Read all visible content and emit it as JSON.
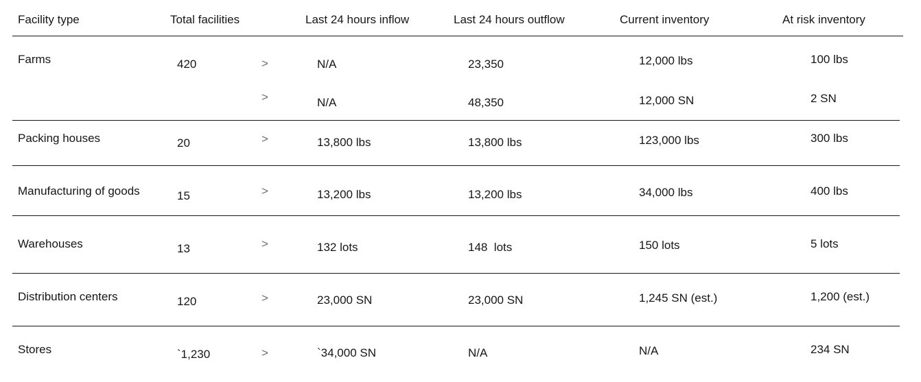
{
  "columns": [
    "Facility type",
    "Total facilities",
    "Last 24 hours inflow",
    "Last 24 hours outflow",
    "Current inventory",
    "At risk inventory"
  ],
  "chevron_glyph": ">",
  "rows": [
    {
      "type": "Farms",
      "total": "420",
      "inflow": "N/A",
      "outflow": "23,350",
      "inventory": "12,000 lbs",
      "risk": "100 lbs"
    },
    {
      "type": "",
      "total": "",
      "inflow": "N/A",
      "outflow": "48,350",
      "inventory": "12,000 SN",
      "risk": "2 SN"
    },
    {
      "type": "Packing houses",
      "total": "20",
      "inflow": "13,800 lbs",
      "outflow": "13,800 lbs",
      "inventory": "123,000 lbs",
      "risk": "300 lbs"
    },
    {
      "type": "Manufacturing of goods",
      "total": "15",
      "inflow": "13,200 lbs",
      "outflow": "13,200 lbs",
      "inventory": "34,000 lbs",
      "risk": "400 lbs"
    },
    {
      "type": "Warehouses",
      "total": "13",
      "inflow": "132 lots",
      "outflow": "148  lots",
      "inventory": "150 lots",
      "risk": "5 lots"
    },
    {
      "type": "Distribution centers",
      "total": "120",
      "inflow": "23,000 SN",
      "outflow": "23,000 SN",
      "inventory": "1,245 SN (est.)",
      "risk": "1,200 (est.)"
    },
    {
      "type": "Stores",
      "total": "`1,230",
      "inflow": "`34,000 SN",
      "outflow": "N/A",
      "inventory": "N/A",
      "risk": "234 SN"
    }
  ]
}
